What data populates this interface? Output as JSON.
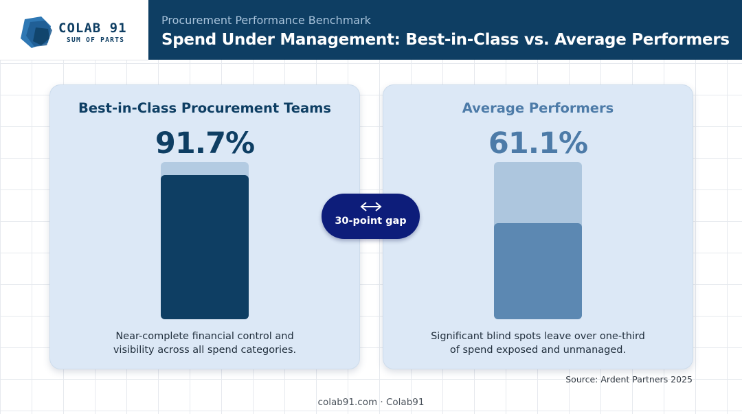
{
  "brand": {
    "name": "COLAB 91",
    "tagline": "SUM OF PARTS"
  },
  "header": {
    "subtitle": "Procurement Performance Benchmark",
    "title": "Spend Under Management: Best-in-Class vs. Average Performers"
  },
  "chart_data": {
    "type": "bar",
    "title": "Spend Under Management: Best-in-Class vs. Average Performers",
    "subtitle": "Procurement Performance Benchmark",
    "categories": [
      "Best-in-Class Procurement Teams",
      "Average Performers"
    ],
    "values": [
      91.7,
      61.1
    ],
    "value_labels": [
      "91.7%",
      "61.1%"
    ],
    "ylim": [
      0,
      100
    ],
    "descriptions": [
      "Near-complete financial control and visibility across all spend categories.",
      "Significant blind spots leave over one-third of spend exposed and unmanaged."
    ],
    "annotation": "30-point gap",
    "source": "Source: Ardent Partners 2025",
    "colors": {
      "best_in_class": "#0e3e63",
      "average": "#5c88b2",
      "track": "#b3cbe2"
    }
  },
  "panels": [
    {
      "title": "Best-in-Class Procurement Teams",
      "value_label": "91.7%",
      "desc_line1": "Near-complete financial control and",
      "desc_line2": "visibility across all spend categories."
    },
    {
      "title": "Average Performers",
      "value_label": "61.1%",
      "desc_line1": "Significant blind spots leave over one-third",
      "desc_line2": "of spend exposed and unmanaged."
    }
  ],
  "gap": {
    "icon": "double-arrow-icon",
    "label": "30-point gap"
  },
  "source": "Source: Ardent Partners 2025",
  "footer": "colab91.com · Colab91"
}
